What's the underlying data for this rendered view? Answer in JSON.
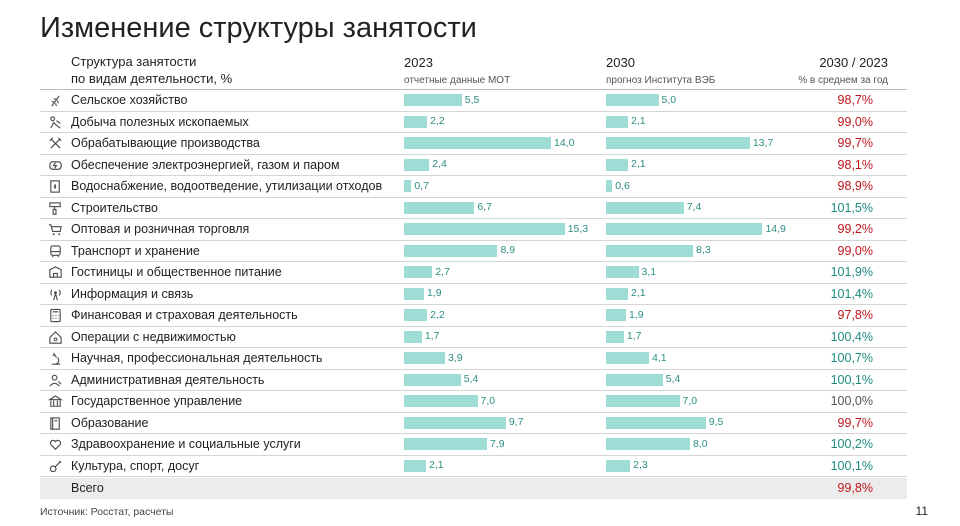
{
  "title": "Изменение структуры занятости",
  "header": {
    "col1_line1": "Структура занятости",
    "col1_line2": "по видам деятельности, %",
    "col2_main": "2023",
    "col2_sub": "отчетные данные МОТ",
    "col3_main": "2030",
    "col3_sub": "прогноз Института ВЭБ",
    "col4_main": "2030 / 2023",
    "col4_sub": "% в среднем за год"
  },
  "colors": {
    "bar": "#9fdcd6",
    "bar_label": "#2d8f84",
    "ratio_down": "#c0161b",
    "ratio_up": "#1e8c7e",
    "ratio_flat": "#555555"
  },
  "chart_data": {
    "type": "bar",
    "categories": [
      "Сельское хозяйство",
      "Добыча полезных ископаемых",
      "Обрабатывающие производства",
      "Обеспечение электроэнергией, газом и паром",
      "Водоснабжение, водоотведение, утилизации отходов",
      "Строительство",
      "Оптовая и розничная торговля",
      "Транспорт и хранение",
      "Гостиницы и общественное питание",
      "Информация и связь",
      "Финансовая и страховая деятельность",
      "Операции с недвижимостью",
      "Научная, профессиональная деятельность",
      "Административная деятельность",
      "Государственное управление",
      "Образование",
      "Здравоохранение и социальные услуги",
      "Культура, спорт, досуг"
    ],
    "icons": [
      "wheat-icon",
      "mining-icon",
      "tools-icon",
      "energy-icon",
      "water-icon",
      "paint-roller-icon",
      "cart-icon",
      "bus-icon",
      "hotel-icon",
      "antenna-icon",
      "calculator-icon",
      "house-icon",
      "microscope-icon",
      "admin-person-icon",
      "government-icon",
      "book-icon",
      "health-icon",
      "guitar-icon"
    ],
    "series": [
      {
        "name": "2023",
        "values": [
          5.5,
          2.2,
          14.0,
          2.4,
          0.7,
          6.7,
          15.3,
          8.9,
          2.7,
          1.9,
          2.2,
          1.7,
          3.9,
          5.4,
          7.0,
          9.7,
          7.9,
          2.1
        ],
        "labels": [
          "5,5",
          "2,2",
          "14,0",
          "2,4",
          "0,7",
          "6,7",
          "15,3",
          "8,9",
          "2,7",
          "1,9",
          "2,2",
          "1,7",
          "3,9",
          "5,4",
          "7,0",
          "9,7",
          "7,9",
          "2,1"
        ]
      },
      {
        "name": "2030",
        "values": [
          5.0,
          2.1,
          13.7,
          2.1,
          0.6,
          7.4,
          14.9,
          8.3,
          3.1,
          2.1,
          1.9,
          1.7,
          4.1,
          5.4,
          7.0,
          9.5,
          8.0,
          2.3
        ],
        "labels": [
          "5,0",
          "2,1",
          "13,7",
          "2,1",
          "0,6",
          "7,4",
          "14,9",
          "8,3",
          "3,1",
          "2,1",
          "1,9",
          "1,7",
          "4,1",
          "5,4",
          "7,0",
          "9,5",
          "8,0",
          "2,3"
        ]
      }
    ],
    "ratios": [
      "98,7%",
      "99,0%",
      "99,7%",
      "98,1%",
      "98,9%",
      "101,5%",
      "99,2%",
      "99,0%",
      "101,9%",
      "101,4%",
      "97,8%",
      "100,4%",
      "100,7%",
      "100,1%",
      "100,0%",
      "99,7%",
      "100,2%",
      "100,1%"
    ],
    "ratio_values": [
      98.7,
      99.0,
      99.7,
      98.1,
      98.9,
      101.5,
      99.2,
      99.0,
      101.9,
      101.4,
      97.8,
      100.4,
      100.7,
      100.1,
      100.0,
      99.7,
      100.2,
      100.1
    ],
    "total": {
      "label": "Всего",
      "ratio": "99,8%"
    }
  },
  "source": "Источник: Росстат, расчеты",
  "page_number": "11"
}
